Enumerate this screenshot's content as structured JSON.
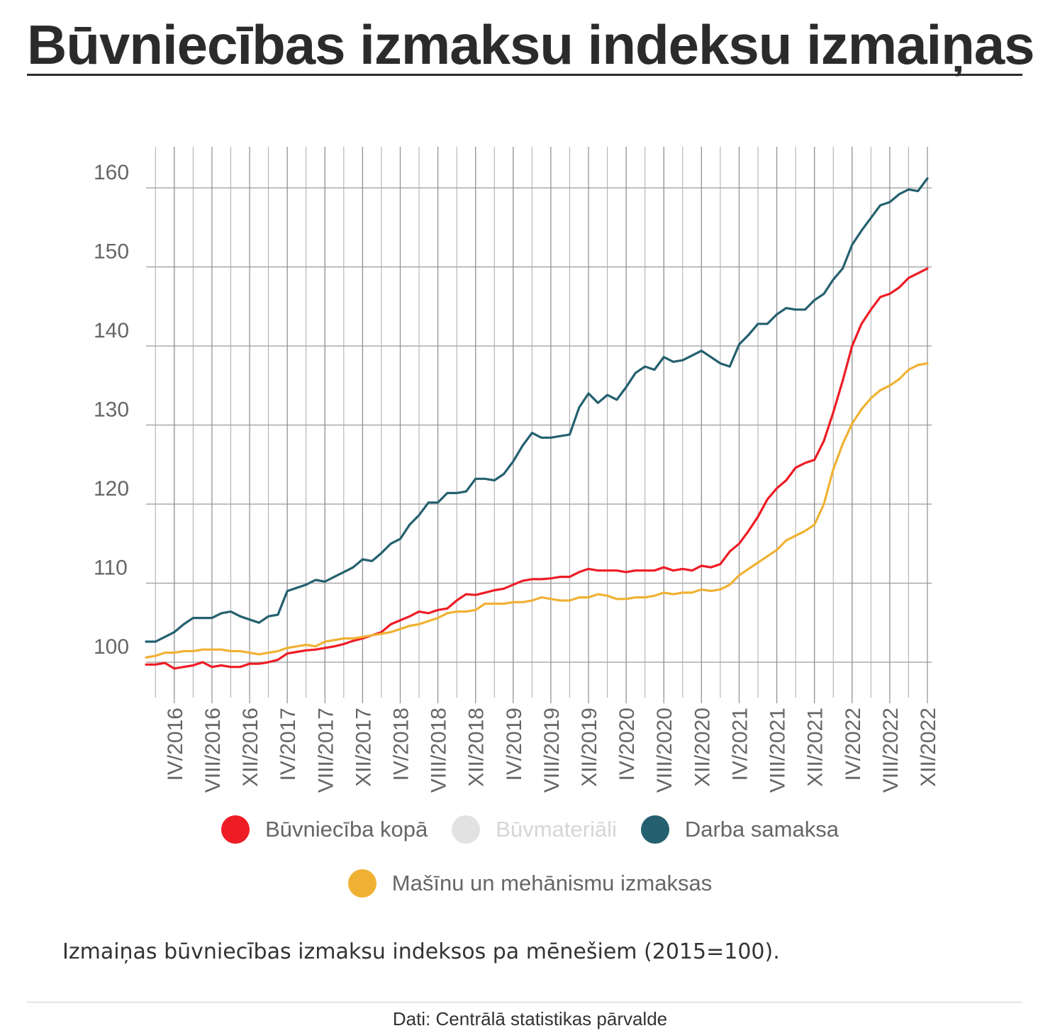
{
  "page": {
    "title": "Būvniecības izmaksu indeksu izmaiņas",
    "caption": "Izmaiņas būvniecības izmaksu indeksos pa mēnešiem  (2015=100).",
    "source": "Dati: Centrālā statistikas pārvalde"
  },
  "chart_data": {
    "type": "line",
    "title": "",
    "xlabel": "",
    "ylabel": "",
    "ylim": [
      95,
      165
    ],
    "yticks": [
      100,
      110,
      120,
      130,
      140,
      150,
      160
    ],
    "x_tick_labels": [
      "IV/2016",
      "VIII/2016",
      "XII/2016",
      "IV/2017",
      "VIII/2017",
      "XII/2017",
      "IV/2018",
      "VIII/2018",
      "XII/2018",
      "IV/2019",
      "VIII/2019",
      "XII/2019",
      "IV/2020",
      "VIII/2020",
      "XII/2020",
      "IV/2021",
      "VIII/2021",
      "XII/2021",
      "IV/2022",
      "VIII/2022",
      "XII/2022"
    ],
    "x_start": "I/2016",
    "x_end": "XII/2022",
    "grid": true,
    "legend_placement": "bottom",
    "series": [
      {
        "name": "Būvniecība kopā",
        "color": "#ee1c25",
        "values": [
          99.7,
          99.7,
          99.9,
          99.2,
          99.4,
          99.6,
          100.0,
          99.4,
          99.6,
          99.4,
          99.4,
          99.8,
          99.8,
          100.0,
          100.3,
          101.1,
          101.3,
          101.5,
          101.6,
          101.8,
          102.0,
          102.3,
          102.7,
          103.0,
          103.4,
          103.8,
          104.8,
          105.3,
          105.8,
          106.4,
          106.2,
          106.6,
          106.8,
          107.8,
          108.6,
          108.5,
          108.8,
          109.1,
          109.3,
          109.8,
          110.3,
          110.5,
          110.5,
          110.6,
          110.8,
          110.8,
          111.4,
          111.8,
          111.6,
          111.6,
          111.6,
          111.4,
          111.6,
          111.6,
          111.6,
          112.0,
          111.6,
          111.8,
          111.6,
          112.2,
          112.0,
          112.4,
          114.0,
          115.0,
          116.6,
          118.4,
          120.6,
          122.0,
          123.0,
          124.6,
          125.2,
          125.6,
          128.0,
          131.6,
          135.6,
          140.0,
          142.8,
          144.6,
          146.2,
          146.6,
          147.4,
          148.6,
          149.2,
          149.8
        ]
      },
      {
        "name": "Būvmateriāli",
        "color": "#e2e2e2",
        "values": []
      },
      {
        "name": "Darba samaksa",
        "color": "#24606f",
        "values": [
          102.6,
          102.6,
          103.2,
          103.8,
          104.8,
          105.6,
          105.6,
          105.6,
          106.2,
          106.4,
          105.8,
          105.4,
          105.0,
          105.8,
          106.0,
          109.0,
          109.4,
          109.8,
          110.4,
          110.2,
          110.8,
          111.4,
          112.0,
          113.0,
          112.8,
          113.8,
          115.0,
          115.6,
          117.4,
          118.6,
          120.2,
          120.2,
          121.4,
          121.4,
          121.6,
          123.2,
          123.2,
          123.0,
          123.8,
          125.4,
          127.4,
          129.0,
          128.4,
          128.4,
          128.6,
          128.8,
          132.2,
          134.0,
          132.8,
          133.8,
          133.2,
          134.8,
          136.6,
          137.4,
          137.0,
          138.6,
          138.0,
          138.2,
          138.8,
          139.4,
          138.6,
          137.8,
          137.4,
          140.2,
          141.4,
          142.8,
          142.8,
          144.0,
          144.8,
          144.6,
          144.6,
          145.8,
          146.6,
          148.4,
          149.8,
          152.8,
          154.6,
          156.2,
          157.8,
          158.2,
          159.2,
          159.8,
          159.6,
          161.2
        ]
      },
      {
        "name": "Mašīnu un mehānismu izmaksas",
        "color": "#f0b133",
        "values": [
          100.6,
          100.8,
          101.2,
          101.2,
          101.4,
          101.4,
          101.6,
          101.6,
          101.6,
          101.4,
          101.4,
          101.2,
          101.0,
          101.2,
          101.4,
          101.8,
          102.0,
          102.2,
          102.0,
          102.6,
          102.8,
          103.0,
          103.0,
          103.2,
          103.4,
          103.6,
          103.8,
          104.2,
          104.6,
          104.8,
          105.2,
          105.6,
          106.2,
          106.4,
          106.4,
          106.6,
          107.4,
          107.4,
          107.4,
          107.6,
          107.6,
          107.8,
          108.2,
          108.0,
          107.8,
          107.8,
          108.2,
          108.2,
          108.6,
          108.4,
          108.0,
          108.0,
          108.2,
          108.2,
          108.4,
          108.8,
          108.6,
          108.8,
          108.8,
          109.2,
          109.0,
          109.2,
          109.8,
          111.0,
          111.8,
          112.6,
          113.4,
          114.2,
          115.4,
          116.0,
          116.6,
          117.4,
          120.0,
          124.4,
          127.6,
          130.2,
          132.0,
          133.4,
          134.4,
          135.0,
          135.8,
          137.0,
          137.6,
          137.8
        ]
      }
    ]
  }
}
